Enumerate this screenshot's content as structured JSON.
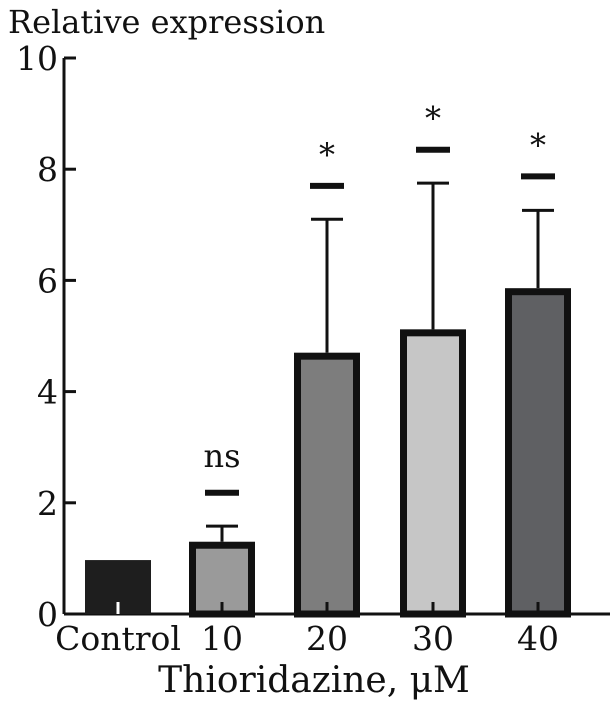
{
  "chart_data": {
    "type": "bar",
    "title": "",
    "ylabel": "Relative expression",
    "xlabel": "Thioridazine, μM",
    "ylim": [
      0,
      10
    ],
    "yticks": [
      0,
      2,
      4,
      6,
      8,
      10
    ],
    "ytick_labels": [
      "0",
      "2",
      "4",
      "6",
      "8",
      "10"
    ],
    "categories": [
      "Control",
      "10",
      "20",
      "30",
      "40"
    ],
    "values": [
      0.97,
      1.3,
      4.7,
      5.12,
      5.86
    ],
    "error_upper": [
      0.97,
      1.58,
      7.1,
      7.75,
      7.26
    ],
    "significance_level": [
      null,
      2.18,
      7.7,
      8.35,
      7.87
    ],
    "annotations": [
      "",
      "ns",
      "*",
      "*",
      "*"
    ],
    "bar_colors": [
      "#1e1e1e",
      "#9a9a9a",
      "#7d7d7d",
      "#c6c6c6",
      "#5f6063"
    ],
    "grid": false,
    "legend": "none"
  }
}
